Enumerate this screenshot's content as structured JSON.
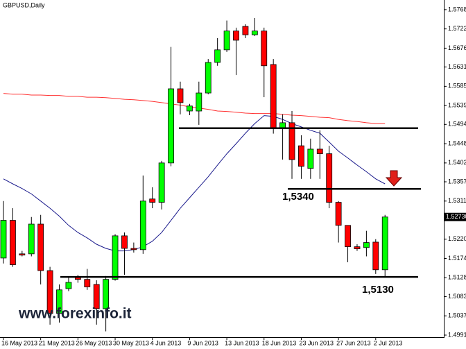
{
  "chart_data": {
    "type": "candlestick",
    "title": "GBPUSD,Daily",
    "categories": [
      "16 May 2013",
      null,
      null,
      null,
      "21 May 2013",
      null,
      null,
      null,
      "26 May 2013",
      null,
      null,
      null,
      "30 May 2013",
      null,
      null,
      null,
      "4 Jun 2013",
      null,
      null,
      null,
      "9 Jun 2013",
      null,
      null,
      null,
      "13 Jun 2013",
      null,
      null,
      null,
      "18 Jun 2013",
      null,
      null,
      null,
      "23 Jun 2013",
      null,
      null,
      null,
      "27 Jun 2013",
      null,
      null,
      null,
      "2 Jul 2013",
      null
    ],
    "open": [
      1.5175,
      1.5265,
      1.5185,
      1.5185,
      1.5256,
      1.5145,
      1.5043,
      1.5102,
      1.5129,
      1.5124,
      1.5112,
      1.5054,
      1.5124,
      1.5228,
      1.5198,
      1.5195,
      1.5316,
      1.5308,
      1.5402,
      1.5579,
      1.5526,
      1.5526,
      1.5569,
      1.5642,
      1.5672,
      1.5717,
      1.5728,
      1.5708,
      1.5717,
      1.5637,
      1.5485,
      1.5498,
      1.5443,
      1.5389,
      1.5435,
      1.5424,
      1.5308,
      1.5253,
      1.5202,
      1.52,
      1.5213,
      1.5147
    ],
    "high": [
      1.5311,
      1.5294,
      1.5192,
      1.5273,
      1.5278,
      1.5154,
      1.5112,
      1.5129,
      1.5135,
      1.5149,
      1.5122,
      1.5132,
      1.5232,
      1.5236,
      1.5212,
      1.5372,
      1.5344,
      1.5407,
      1.5679,
      1.5596,
      1.5543,
      1.5596,
      1.565,
      1.57,
      1.5742,
      1.5725,
      1.5733,
      1.5748,
      1.5725,
      1.565,
      1.5518,
      1.5526,
      1.5468,
      1.546,
      1.548,
      1.5443,
      1.5311,
      1.5248,
      1.5208,
      1.524,
      1.522,
      1.5278
    ],
    "low": [
      1.5162,
      1.5154,
      1.5179,
      1.5179,
      1.5112,
      1.5016,
      1.5021,
      1.5096,
      1.5116,
      1.5099,
      1.5016,
      1.5,
      1.5121,
      1.5135,
      1.5188,
      1.5185,
      1.5294,
      1.5291,
      1.5394,
      1.5518,
      1.5516,
      1.5493,
      1.5566,
      1.5634,
      1.5667,
      1.5612,
      1.57,
      1.5705,
      1.5559,
      1.5472,
      1.541,
      1.5364,
      1.5364,
      1.5364,
      1.5364,
      1.5294,
      1.5212,
      1.5165,
      1.5192,
      1.5179,
      1.5137,
      1.5129
    ],
    "close": [
      1.5265,
      1.5159,
      1.5182,
      1.5256,
      1.5145,
      1.5043,
      1.5099,
      1.5117,
      1.5124,
      1.5106,
      1.5054,
      1.5124,
      1.5228,
      1.5198,
      1.5195,
      1.5311,
      1.5308,
      1.5402,
      1.5579,
      1.5546,
      1.5538,
      1.5569,
      1.5642,
      1.5672,
      1.5717,
      1.5695,
      1.5708,
      1.5717,
      1.5634,
      1.5485,
      1.5498,
      1.541,
      1.5394,
      1.5435,
      1.5424,
      1.5308,
      1.5253,
      1.5202,
      1.5197,
      1.5212,
      1.5147,
      1.5273
    ],
    "up_color": "#00ff00",
    "down_color": "#ff0000",
    "series": [
      {
        "color": "#1a1a8c",
        "values": [
          1.5364,
          1.5352,
          1.5341,
          1.5328,
          1.5311,
          1.5294,
          1.5275,
          1.5253,
          1.5236,
          1.5223,
          1.5208,
          1.5198,
          1.5192,
          1.5192,
          1.5195,
          1.5202,
          1.5215,
          1.5236,
          1.5265,
          1.5294,
          1.5319,
          1.5344,
          1.5369,
          1.5397,
          1.5424,
          1.5448,
          1.5473,
          1.5496,
          1.5515,
          1.5513,
          1.5506,
          1.5496,
          1.5488,
          1.548,
          1.5473,
          1.5452,
          1.543,
          1.5414,
          1.5397,
          1.5381,
          1.5364,
          1.5352
        ]
      },
      {
        "color": "#ff3030",
        "values": [
          1.5568,
          1.5566,
          1.5566,
          1.5564,
          1.5564,
          1.5563,
          1.5563,
          1.5561,
          1.5561,
          1.5559,
          1.5559,
          1.5558,
          1.5556,
          1.5554,
          1.5553,
          1.5551,
          1.5549,
          1.5546,
          1.5543,
          1.554,
          1.5536,
          1.5533,
          1.553,
          1.5526,
          1.5525,
          1.5523,
          1.5521,
          1.552,
          1.552,
          1.552,
          1.5518,
          1.5516,
          1.5515,
          1.5513,
          1.5511,
          1.551,
          1.5506,
          1.5503,
          1.5501,
          1.5498,
          1.5496,
          1.5496
        ]
      }
    ],
    "levels": [
      1.5485,
      {
        "value": 1.534,
        "label": "1,5340"
      },
      {
        "value": 1.513,
        "label": "1,5130"
      }
    ],
    "price_label": {
      "value": 1.5273,
      "label": "1.52730"
    },
    "watermark": "www.forexinfo.it",
    "ylim": [
      1.4986,
      1.5791
    ],
    "yticks": [
      {
        "value": 1.5768,
        "label": "1.57680"
      },
      {
        "value": 1.5722,
        "label": "1.57220"
      },
      {
        "value": 1.5676,
        "label": "1.56760"
      },
      {
        "value": 1.5631,
        "label": "1.56310"
      },
      {
        "value": 1.5585,
        "label": "1.55850"
      },
      {
        "value": 1.5539,
        "label": "1.55390"
      },
      {
        "value": 1.5494,
        "label": "1.54940"
      },
      {
        "value": 1.5448,
        "label": "1.54480"
      },
      {
        "value": 1.5402,
        "label": "1.54020"
      },
      {
        "value": 1.5357,
        "label": "1.53570"
      },
      {
        "value": 1.5311,
        "label": "1.53110"
      },
      {
        "value": 1.522,
        "label": "1.52200"
      },
      {
        "value": 1.5174,
        "label": "1.51740"
      },
      {
        "value": 1.5128,
        "label": "1.51280"
      },
      {
        "value": 1.5083,
        "label": "1.50830"
      },
      {
        "value": 1.5037,
        "label": "1.50370"
      },
      {
        "value": 1.4991,
        "label": "1.49910"
      }
    ]
  }
}
